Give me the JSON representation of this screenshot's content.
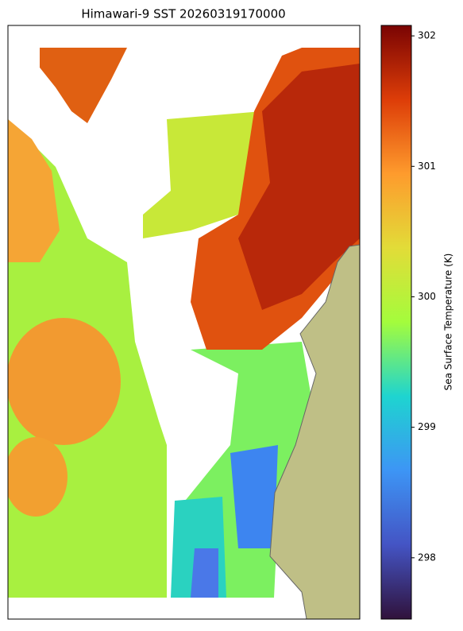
{
  "title": "Himawari-9 SST 20260319170000",
  "colorbar": {
    "label": "Sea Surface Temperature (K)",
    "lim": [
      297.53,
      302.08
    ],
    "ticks": [
      298,
      299,
      300,
      301,
      302
    ]
  }
}
